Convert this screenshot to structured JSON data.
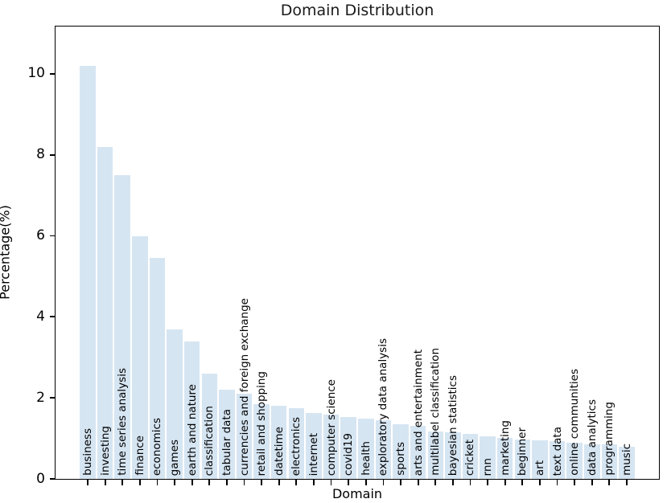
{
  "chart_data": {
    "type": "bar",
    "title": "Domain Distribution",
    "xlabel": "Domain",
    "ylabel": "Percentage(%)",
    "categories": [
      "business",
      "investing",
      "time series analysis",
      "finance",
      "economics",
      "games",
      "earth and nature",
      "classification",
      "tabular data",
      "currencies and foreign exchange",
      "retail and shopping",
      "datetime",
      "electronics",
      "internet",
      "computer science",
      "covid19",
      "health",
      "exploratory data analysis",
      "sports",
      "arts and entertainment",
      "multilabel classification",
      "bayesian statistics",
      "cricket",
      "rnn",
      "marketing",
      "beginner",
      "art",
      "text data",
      "online communities",
      "data analytics",
      "programming",
      "music"
    ],
    "values": [
      10.2,
      8.2,
      7.5,
      6.0,
      5.45,
      3.7,
      3.4,
      2.6,
      2.2,
      2.1,
      1.85,
      1.8,
      1.75,
      1.62,
      1.58,
      1.52,
      1.48,
      1.45,
      1.35,
      1.3,
      1.18,
      1.15,
      1.12,
      1.05,
      1.02,
      0.97,
      0.95,
      0.93,
      0.9,
      0.85,
      0.85,
      0.8
    ],
    "yticks": [
      0,
      2,
      4,
      6,
      8,
      10
    ],
    "ylim": [
      0,
      11.17
    ],
    "bar_color": "#d6e5f2",
    "axis_color": "#000000",
    "text_color": "#000000",
    "label_rotation": 90,
    "grid": false,
    "legend": "none"
  }
}
